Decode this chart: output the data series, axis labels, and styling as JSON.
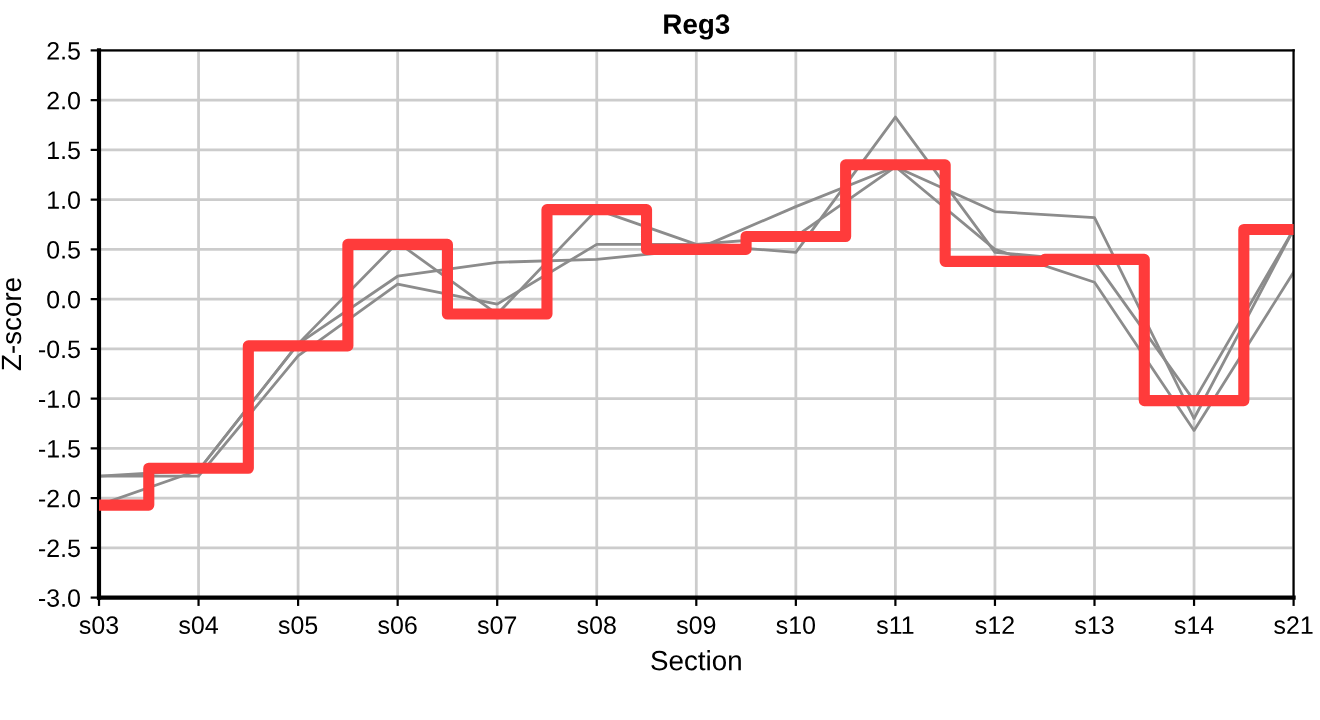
{
  "chart_data": {
    "type": "line",
    "title": "Reg3",
    "xlabel": "Section",
    "ylabel": "Z-score",
    "categories": [
      "s03",
      "s04",
      "s05",
      "s06",
      "s07",
      "s08",
      "s09",
      "s10",
      "s11",
      "s12",
      "s13",
      "s14",
      "s21"
    ],
    "series": [
      {
        "color": "#8c8c8c",
        "values": [
          -1.78,
          -1.72,
          -0.45,
          0.57,
          -0.15,
          0.9,
          0.55,
          0.47,
          1.83,
          0.47,
          0.38,
          -1.02,
          0.7
        ]
      },
      {
        "color": "#8c8c8c",
        "values": [
          -2.07,
          -1.72,
          -0.45,
          0.23,
          0.37,
          0.4,
          0.5,
          0.93,
          1.33,
          0.88,
          0.82,
          -1.2,
          0.7
        ]
      },
      {
        "color": "#8c8c8c",
        "values": [
          -1.78,
          -1.78,
          -0.57,
          0.15,
          -0.05,
          0.55,
          0.55,
          0.63,
          1.33,
          0.5,
          0.17,
          -1.32,
          0.27
        ]
      },
      {
        "type": "step",
        "color": "#ff3b3b",
        "values": [
          -2.07,
          -1.7,
          -0.47,
          0.55,
          -0.15,
          0.9,
          0.5,
          0.63,
          1.35,
          0.38,
          0.4,
          -1.02,
          0.7
        ]
      }
    ],
    "ylim": [
      -3.0,
      2.5
    ],
    "yticks": [
      {
        "value": -3,
        "label": "-3.0"
      },
      {
        "value": -2.5,
        "label": "-2.5"
      },
      {
        "value": -2,
        "label": "-2.0"
      },
      {
        "value": -1.5,
        "label": "-1.5"
      },
      {
        "value": -1,
        "label": "-1.0"
      },
      {
        "value": -0.5,
        "label": "-0.5"
      },
      {
        "value": 0,
        "label": "0.0"
      },
      {
        "value": 0.5,
        "label": "0.5"
      },
      {
        "value": 1,
        "label": "1.0"
      },
      {
        "value": 1.5,
        "label": "1.5"
      },
      {
        "value": 2,
        "label": "2.0"
      },
      {
        "value": 2.5,
        "label": "2.5"
      }
    ],
    "grid": true,
    "marker": "none",
    "line_style": "solid"
  }
}
